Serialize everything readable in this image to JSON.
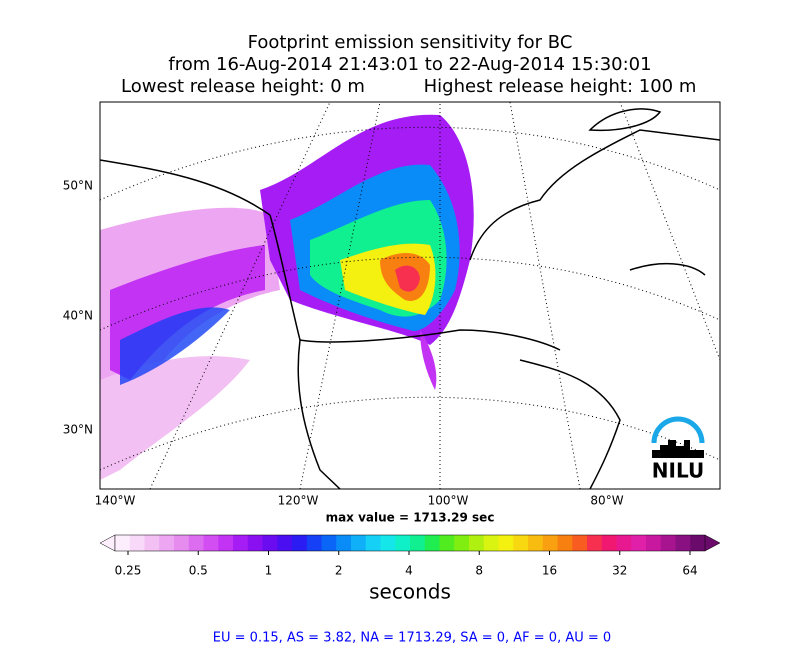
{
  "header": {
    "title": "Footprint emission sensitivity for BC",
    "period": "from 16-Aug-2014 21:43:01 to 22-Aug-2014 15:30:01",
    "lowest": "Lowest release height: 0 m",
    "highest": "Highest release height: 100 m"
  },
  "map": {
    "lat_labels": [
      "50°N",
      "40°N",
      "30°N"
    ],
    "lon_labels": [
      "140°W",
      "120°W",
      "100°W",
      "80°W"
    ],
    "max_value": "max value = 1713.29 sec",
    "logo": "NILU"
  },
  "colorbar": {
    "ticks": [
      "0.25",
      "0.5",
      "1",
      "2",
      "4",
      "8",
      "16",
      "32",
      "64"
    ],
    "label": "seconds",
    "colors": [
      "#fdeefd",
      "#f9d9f9",
      "#f3c0f3",
      "#eda6f1",
      "#e68cef",
      "#dd6df0",
      "#d24ef2",
      "#c233f4",
      "#a61cf4",
      "#8a10f2",
      "#6b0cf0",
      "#4a0ef0",
      "#2a1cf2",
      "#1540f5",
      "#0a66f7",
      "#0a8cf8",
      "#10b0f8",
      "#16d0f6",
      "#14e6ea",
      "#10f0c8",
      "#10f090",
      "#20ee50",
      "#50ec20",
      "#80ee10",
      "#b0f010",
      "#d8f410",
      "#f4f010",
      "#f8d810",
      "#f8bc10",
      "#f8a010",
      "#f88010",
      "#f85c20",
      "#f83050",
      "#f01870",
      "#e81890",
      "#e020a8",
      "#c818a0",
      "#a81490",
      "#881080",
      "#6a0a6a"
    ]
  },
  "footer": "EU = 0.15,  AS = 3.82,  NA = 1713.29,  SA = 0,  AF = 0,  AU = 0"
}
